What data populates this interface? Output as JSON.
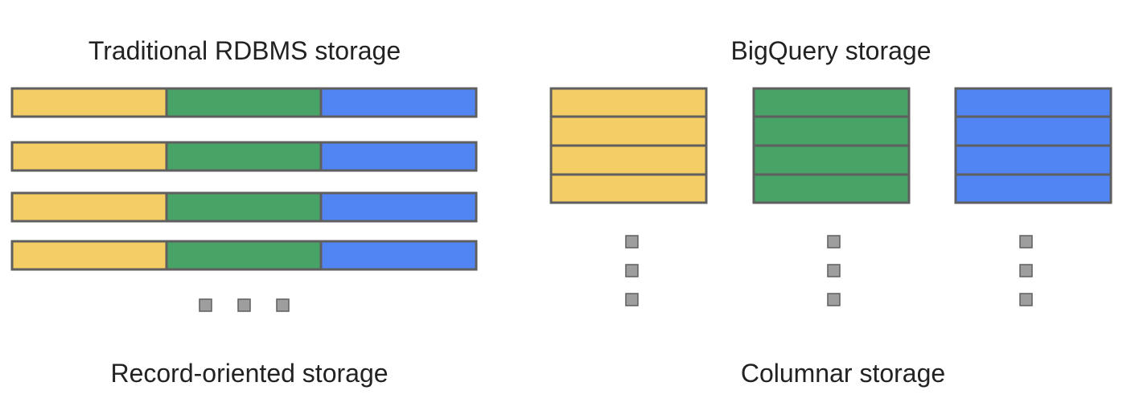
{
  "left_panel": {
    "title": "Traditional RDBMS storage",
    "caption": "Record-oriented storage"
  },
  "right_panel": {
    "title": "BigQuery storage",
    "caption": "Columnar storage"
  },
  "colors": {
    "yellow": "#f5cd65",
    "green": "#48a367",
    "blue": "#5185f4",
    "border": "#5f5f5f",
    "dot": "#9e9e9e"
  }
}
